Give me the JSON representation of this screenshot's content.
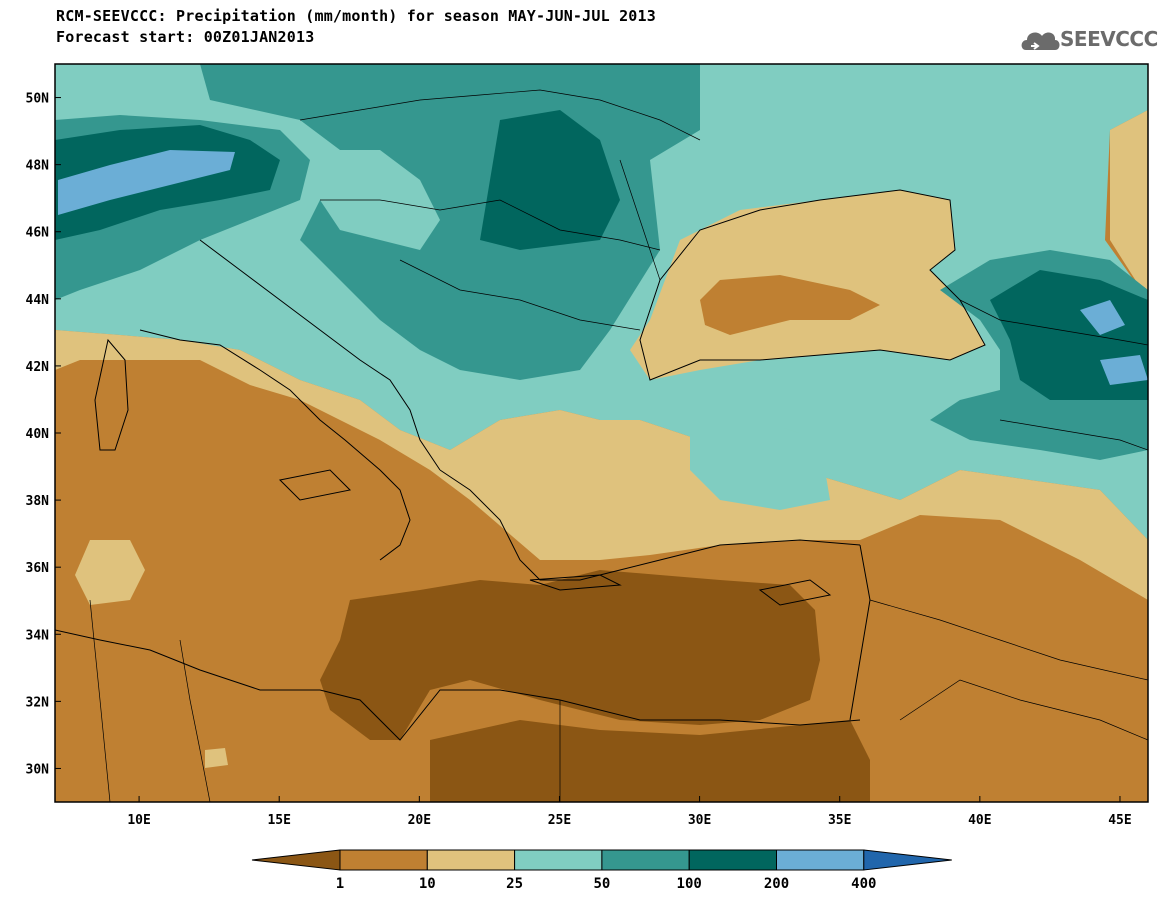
{
  "header": {
    "title_line1": "RCM-SEEVCCC: Precipitation (mm/month) for season MAY-JUN-JUL 2013",
    "title_line2": "Forecast start: 00Z01JAN2013"
  },
  "logo": {
    "text": "SEEVCCC",
    "icon": "cloud-icon"
  },
  "map_extent": {
    "lon": [
      7,
      46
    ],
    "lat": [
      29,
      51
    ]
  },
  "axes": {
    "lat_ticks": [
      "50N",
      "48N",
      "46N",
      "44N",
      "42N",
      "40N",
      "38N",
      "36N",
      "34N",
      "32N",
      "30N"
    ],
    "lat_values": [
      50,
      48,
      46,
      44,
      42,
      40,
      38,
      36,
      34,
      32,
      30
    ],
    "lon_ticks": [
      "10E",
      "15E",
      "20E",
      "25E",
      "30E",
      "35E",
      "40E",
      "45E"
    ],
    "lon_values": [
      10,
      15,
      20,
      25,
      30,
      35,
      40,
      45
    ]
  },
  "legend": {
    "boundaries": [
      "1",
      "10",
      "25",
      "50",
      "100",
      "200",
      "400"
    ],
    "colors": [
      "#8b5614",
      "#bf8032",
      "#dfc27d",
      "#80cdc1",
      "#35978f",
      "#01665e",
      "#6baed6",
      "#2166ac"
    ]
  }
}
